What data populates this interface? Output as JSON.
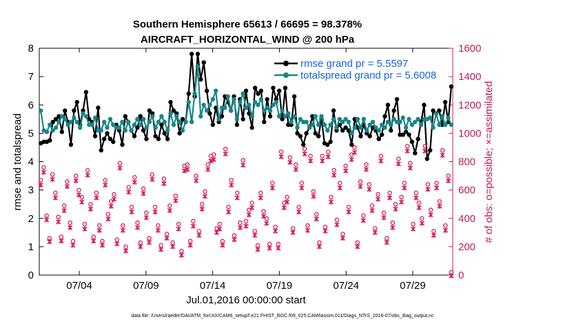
{
  "chart_data": {
    "type": "line",
    "title": "Southern Hemisphere 65613 / 66695 = 98.378%",
    "subtitle": "AIRCRAFT_HORIZONTAL_WIND @ 200 hPa",
    "xlabel": "Jul.01,2016 00:00:00 start",
    "ylabel_left": "rmse and totalspread",
    "ylabel_right": "# of obs: o=possible; ×=assimilated",
    "footnote": "data file: /Users/raeder/DAI/ATM_forcXX/CAM6_setup/f.e21.FHIST_BGC.f09_025.CAM6assim.011/Diags_NTrS_2016-07/obs_diag_output.nc",
    "x_range_days": [
      0,
      31
    ],
    "x_ticks": [
      {
        "day": 3,
        "label": "07/04"
      },
      {
        "day": 8,
        "label": "07/09"
      },
      {
        "day": 13,
        "label": "07/14"
      },
      {
        "day": 18,
        "label": "07/19"
      },
      {
        "day": 23,
        "label": "07/24"
      },
      {
        "day": 28,
        "label": "07/29"
      }
    ],
    "ylim_left": [
      0,
      8
    ],
    "yticks_left": [
      "0",
      "1",
      "2",
      "3",
      "4",
      "5",
      "6",
      "7",
      "8"
    ],
    "ylim_right": [
      0,
      1600
    ],
    "yticks_right": [
      "0",
      "200",
      "400",
      "600",
      "800",
      "1000",
      "1200",
      "1400",
      "1600"
    ],
    "legend": [
      {
        "label": "rmse grand pr = 5.5597",
        "color": "#000000"
      },
      {
        "label": "totalspread grand pr = 5.6008",
        "color": "#17868a"
      }
    ],
    "series": [
      {
        "name": "rmse",
        "color": "#000000",
        "axis": "left",
        "values": [
          4.65,
          4.7,
          4.7,
          4.75,
          5.4,
          5.5,
          5.6,
          5.05,
          5.8,
          5.4,
          4.6,
          5.8,
          6.1,
          5.3,
          5.8,
          6.45,
          5.5,
          5.4,
          4.9,
          5.9,
          4.4,
          4.8,
          5.0,
          4.8,
          4.7,
          5.3,
          5.1,
          4.6,
          5.6,
          5.4,
          5.1,
          4.9,
          5.2,
          5.6,
          5.1,
          4.8,
          5.8,
          5.7,
          4.9,
          4.8,
          5.3,
          5.0,
          4.8,
          6.1,
          5.8,
          5.7,
          5.0,
          5.5,
          5.4,
          6.4,
          7.8,
          6.3,
          7.8,
          6.9,
          7.5,
          6.5,
          5.7,
          5.3,
          5.9,
          5.4,
          5.6,
          6.3,
          6.1,
          5.8,
          6.3,
          5.3,
          6.2,
          5.5,
          6.5,
          5.7,
          5.2,
          6.6,
          6.4,
          6.5,
          5.4,
          6.2,
          5.6,
          6.6,
          6.2,
          6.5,
          5.5,
          6.6,
          5.3,
          5.3,
          6.3,
          5.0,
          4.9,
          4.6,
          5.0,
          5.2,
          5.6,
          5.0,
          4.9,
          5.5,
          4.65,
          4.6,
          4.7,
          5.8,
          5.1,
          5.3,
          5.1,
          5.2,
          5.1,
          4.6,
          5.5,
          5.2,
          4.9,
          5.3,
          5.0,
          4.9,
          5.2,
          5.1,
          4.8,
          4.95,
          5.6,
          6.0,
          5.1,
          5.8,
          6.2,
          4.95,
          4.95,
          5.05,
          4.95,
          4.7,
          4.3,
          4.8,
          5.4,
          6.0,
          4.1,
          4.4,
          5.8,
          5.7,
          5.8,
          5.3,
          6.1,
          5.4,
          6.65
        ]
      },
      {
        "name": "totalspread",
        "color": "#17868a",
        "axis": "left",
        "values": [
          5.8,
          5.1,
          5.05,
          5.3,
          5.1,
          5.2,
          5.4,
          5.6,
          5.5,
          5.3,
          5.4,
          5.55,
          5.4,
          5.2,
          5.7,
          5.6,
          5.3,
          5.3,
          5.55,
          5.1,
          5.1,
          5.4,
          5.2,
          5.5,
          5.3,
          5.2,
          5.2,
          5.4,
          5.1,
          5.4,
          5.1,
          5.3,
          5.5,
          5.3,
          5.5,
          5.2,
          5.4,
          5.6,
          5.2,
          5.4,
          5.6,
          5.4,
          5.1,
          5.7,
          5.3,
          5.6,
          5.4,
          5.1,
          5.4,
          6.1,
          5.4,
          6.4,
          7.35,
          5.6,
          6.0,
          5.8,
          6.0,
          6.2,
          6.5,
          5.5,
          5.9,
          5.9,
          6.3,
          5.8,
          6.2,
          5.5,
          6.1,
          6.4,
          5.9,
          6.0,
          5.6,
          6.1,
          6.0,
          6.2,
          5.8,
          5.9,
          5.8,
          6.0,
          6.1,
          5.6,
          5.8,
          5.6,
          5.7,
          5.4,
          5.6,
          5.2,
          5.5,
          5.4,
          5.4,
          5.2,
          5.3,
          5.6,
          5.3,
          5.6,
          5.3,
          5.1,
          5.3,
          5.5,
          5.2,
          5.5,
          5.4,
          5.5,
          5.4,
          5.0,
          5.2,
          5.5,
          5.2,
          5.5,
          5.1,
          5.3,
          5.4,
          5.2,
          5.1,
          5.3,
          5.2,
          5.4,
          5.3,
          5.5,
          5.4,
          5.4,
          5.55,
          5.2,
          5.5,
          5.3,
          5.4,
          5.5,
          5.3,
          5.5,
          5.5,
          5.55,
          5.2,
          5.7,
          5.3,
          5.6,
          5.3,
          5.55,
          5.3
        ]
      },
      {
        "name": "possible",
        "color": "#d81b60",
        "axis": "right",
        "marker": "circle",
        "values": [
          650,
          740,
          400,
          240,
          690,
          560,
          390,
          250,
          470,
          640,
          350,
          220,
          680,
          580,
          530,
          340,
          720,
          480,
          250,
          560,
          330,
          220,
          650,
          410,
          500,
          550,
          230,
          770,
          330,
          180,
          600,
          460,
          670,
          350,
          210,
          590,
          420,
          240,
          690,
          460,
          330,
          190,
          660,
          270,
          470,
          210,
          540,
          340,
          150,
          750,
          760,
          220,
          360,
          680,
          290,
          480,
          570,
          760,
          820,
          830,
          310,
          340,
          220,
          870,
          460,
          650,
          260,
          560,
          350,
          790,
          360,
          440,
          490,
          290,
          190,
          560,
          430,
          380,
          200,
          630,
          320,
          200,
          850,
          490,
          530,
          810,
          310,
          760,
          460,
          630,
          870,
          330,
          820,
          570,
          410,
          210,
          820,
          320,
          850,
          530,
          720,
          370,
          630,
          270,
          750,
          460,
          830,
          880,
          210,
          640,
          400,
          760,
          620,
          470,
          310,
          550,
          820,
          420,
          240,
          560,
          350,
          480,
          800,
          530,
          630,
          890,
          770,
          340,
          560,
          490,
          380,
          890,
          620,
          440,
          290,
          630,
          500,
          860,
          330,
          680,
          0
        ]
      },
      {
        "name": "assimilated",
        "color": "#d81b60",
        "axis": "right",
        "marker": "x",
        "values": [
          640,
          730,
          395,
          240,
          680,
          550,
          380,
          245,
          460,
          630,
          340,
          215,
          670,
          570,
          520,
          330,
          710,
          470,
          245,
          550,
          320,
          215,
          640,
          400,
          490,
          540,
          225,
          760,
          320,
          175,
          590,
          450,
          660,
          340,
          205,
          580,
          410,
          235,
          680,
          450,
          320,
          185,
          650,
          265,
          460,
          205,
          530,
          330,
          145,
          740,
          750,
          215,
          350,
          670,
          285,
          470,
          560,
          750,
          810,
          820,
          305,
          330,
          215,
          860,
          450,
          640,
          255,
          550,
          340,
          780,
          350,
          430,
          480,
          285,
          185,
          550,
          420,
          370,
          195,
          620,
          315,
          195,
          840,
          480,
          520,
          800,
          305,
          750,
          450,
          620,
          860,
          320,
          810,
          560,
          400,
          205,
          810,
          315,
          840,
          520,
          710,
          360,
          620,
          265,
          740,
          450,
          820,
          870,
          205,
          630,
          390,
          750,
          610,
          460,
          305,
          540,
          810,
          410,
          235,
          550,
          340,
          470,
          790,
          520,
          620,
          880,
          760,
          330,
          550,
          480,
          370,
          880,
          610,
          430,
          285,
          620,
          490,
          850,
          320,
          670,
          0
        ]
      }
    ]
  }
}
